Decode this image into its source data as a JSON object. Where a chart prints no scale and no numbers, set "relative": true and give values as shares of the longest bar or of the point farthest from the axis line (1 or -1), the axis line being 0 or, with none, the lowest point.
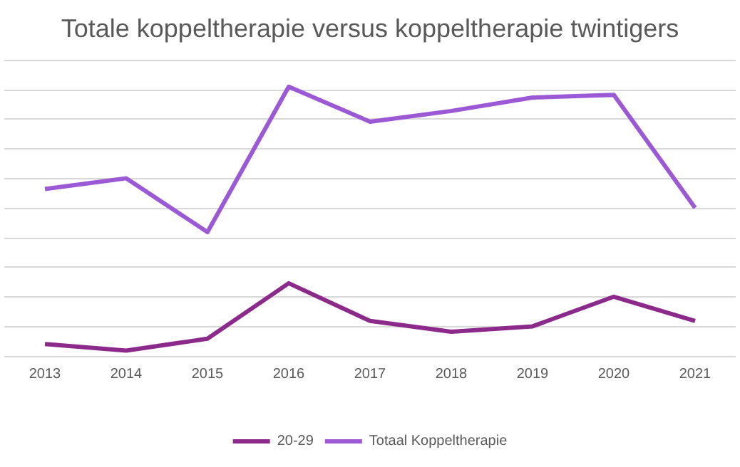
{
  "chart_data": {
    "type": "line",
    "title": "Totale koppeltherapie versus koppeltherapie twintigers",
    "relative": true,
    "grid": "y",
    "legend": "bottom",
    "marker": "none",
    "categories": [
      "2013",
      "2014",
      "2015",
      "2016",
      "2017",
      "2018",
      "2019",
      "2020",
      "2021"
    ],
    "series": [
      {
        "name": "20-29",
        "color": "#8c2a8c",
        "values": [
          0.044,
          0.02,
          0.064,
          0.27,
          0.13,
          0.09,
          0.11,
          0.22,
          0.13
        ]
      },
      {
        "name": "Totaal Koppeltherapie",
        "color": "#9b59d6",
        "values": [
          0.62,
          0.66,
          0.46,
          1,
          0.87,
          0.91,
          0.96,
          0.97,
          0.55
        ]
      }
    ]
  }
}
